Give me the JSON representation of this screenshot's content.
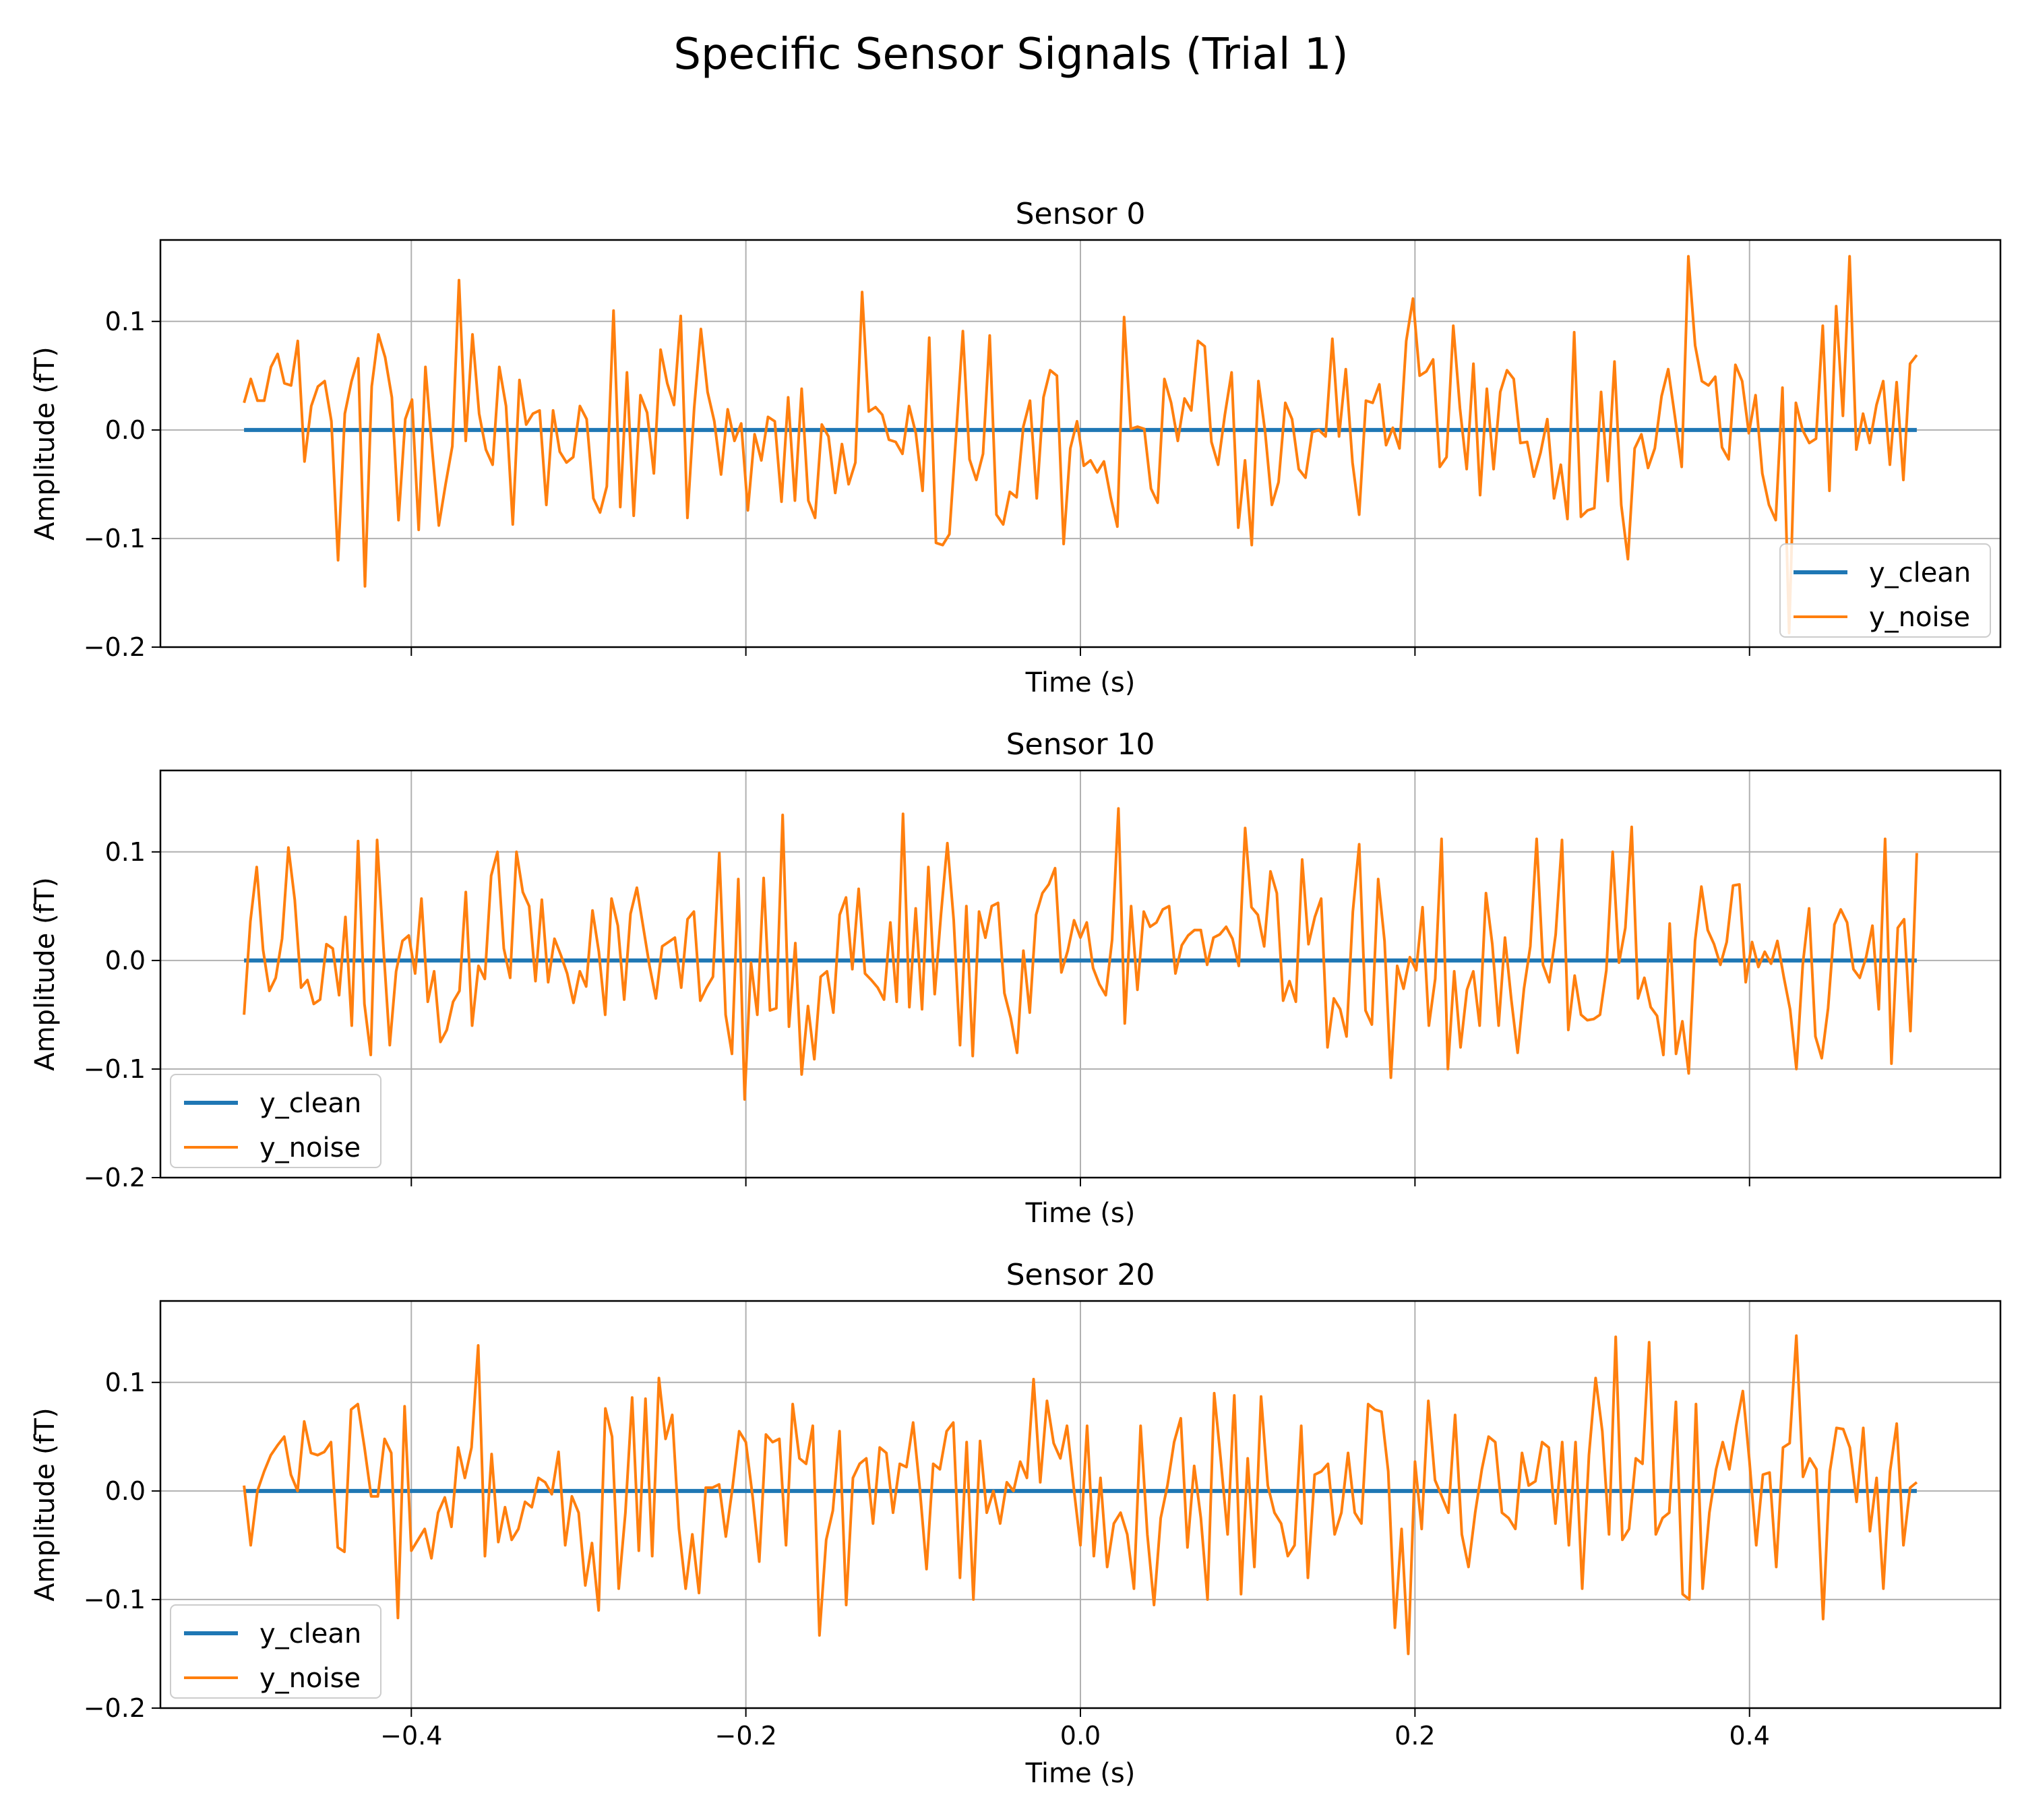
{
  "figure": {
    "suptitle": "Specific Sensor Signals (Trial 1)",
    "colors": {
      "y_clean": "#1f77b4",
      "y_noise": "#ff7f0e",
      "grid": "#b0b0b0"
    }
  },
  "chart_data": [
    {
      "type": "line",
      "title": "Sensor 0",
      "xlabel": "Time (s)",
      "ylabel": "Amplitude  (fT)",
      "xlim": [
        -0.55,
        0.55
      ],
      "ylim": [
        -0.2,
        0.175
      ],
      "xticks": [
        -0.4,
        -0.2,
        0.0,
        0.2,
        0.4
      ],
      "xtick_labels": [],
      "yticks": [
        -0.2,
        -0.1,
        0.0,
        0.1
      ],
      "ytick_labels": [
        "−0.2",
        "−0.1",
        "0.0",
        "0.1"
      ],
      "grid": true,
      "legend": "lower right",
      "x_start": -0.5,
      "x_end": 0.5,
      "series": [
        {
          "name": "y_clean",
          "values": [
            0.0,
            0.0
          ]
        },
        {
          "name": "y_noise",
          "values": [
            0.025,
            0.047,
            0.027,
            0.027,
            0.058,
            0.07,
            0.043,
            0.041,
            0.082,
            -0.029,
            0.022,
            0.04,
            0.045,
            0.008,
            -0.12,
            0.015,
            0.045,
            0.066,
            -0.144,
            0.04,
            0.088,
            0.067,
            0.03,
            -0.083,
            0.01,
            0.028,
            -0.092,
            0.058,
            -0.018,
            -0.088,
            -0.05,
            -0.015,
            0.138,
            -0.01,
            0.088,
            0.015,
            -0.018,
            -0.032,
            0.058,
            0.022,
            -0.087,
            0.046,
            0.005,
            0.015,
            0.018,
            -0.069,
            0.018,
            -0.02,
            -0.03,
            -0.025,
            0.022,
            0.01,
            -0.063,
            -0.076,
            -0.052,
            0.11,
            -0.071,
            0.053,
            -0.079,
            0.032,
            0.016,
            -0.04,
            0.074,
            0.043,
            0.023,
            0.105,
            -0.081,
            0.02,
            0.093,
            0.035,
            0.008,
            -0.041,
            0.019,
            -0.01,
            0.006,
            -0.074,
            -0.004,
            -0.028,
            0.012,
            0.008,
            -0.066,
            0.03,
            -0.065,
            0.038,
            -0.065,
            -0.081,
            0.005,
            -0.006,
            -0.058,
            -0.013,
            -0.05,
            -0.03,
            0.127,
            0.017,
            0.021,
            0.014,
            -0.009,
            -0.011,
            -0.022,
            0.022,
            -0.003,
            -0.056,
            0.085,
            -0.104,
            -0.106,
            -0.096,
            -0.004,
            0.091,
            -0.027,
            -0.046,
            -0.022,
            0.087,
            -0.078,
            -0.087,
            -0.057,
            -0.062,
            0.003,
            0.027,
            -0.063,
            0.03,
            0.055,
            0.05,
            -0.105,
            -0.017,
            0.008,
            -0.033,
            -0.028,
            -0.039,
            -0.029,
            -0.062,
            -0.089,
            0.104,
            0.001,
            0.003,
            0.001,
            -0.054,
            -0.067,
            0.047,
            0.025,
            -0.01,
            0.029,
            0.018,
            0.082,
            0.077,
            -0.011,
            -0.032,
            0.014,
            0.053,
            -0.09,
            -0.028,
            -0.106,
            0.045,
            -0.002,
            -0.069,
            -0.048,
            0.025,
            0.01,
            -0.036,
            -0.044,
            -0.002,
            0.0,
            -0.006,
            0.084,
            -0.006,
            0.056,
            -0.03,
            -0.078,
            0.027,
            0.025,
            0.042,
            -0.014,
            0.002,
            -0.017,
            0.082,
            0.121,
            0.05,
            0.054,
            0.065,
            -0.034,
            -0.025,
            0.096,
            0.02,
            -0.036,
            0.061,
            -0.06,
            0.038,
            -0.036,
            0.035,
            0.055,
            0.047,
            -0.012,
            -0.011,
            -0.043,
            -0.021,
            0.01,
            -0.063,
            -0.032,
            -0.082,
            0.09,
            -0.08,
            -0.074,
            -0.072,
            0.035,
            -0.047,
            0.063,
            -0.069,
            -0.119,
            -0.017,
            -0.004,
            -0.035,
            -0.017,
            0.031,
            0.056,
            0.012,
            -0.034,
            0.16,
            0.078,
            0.045,
            0.041,
            0.049,
            -0.016,
            -0.027,
            0.06,
            0.045,
            -0.003,
            0.032,
            -0.04,
            -0.069,
            -0.083,
            0.039,
            -0.187,
            0.025,
            0.0,
            -0.012,
            -0.008,
            0.096,
            -0.056,
            0.114,
            0.013,
            0.16,
            -0.018,
            0.015,
            -0.012,
            0.023,
            0.045,
            -0.032,
            0.044,
            -0.046,
            0.061,
            0.069
          ]
        }
      ]
    },
    {
      "type": "line",
      "title": "Sensor 10",
      "xlabel": "Time (s)",
      "ylabel": "Amplitude  (fT)",
      "xlim": [
        -0.55,
        0.55
      ],
      "ylim": [
        -0.2,
        0.175
      ],
      "xticks": [
        -0.4,
        -0.2,
        0.0,
        0.2,
        0.4
      ],
      "xtick_labels": [],
      "yticks": [
        -0.2,
        -0.1,
        0.0,
        0.1
      ],
      "ytick_labels": [
        "−0.2",
        "−0.1",
        "0.0",
        "0.1"
      ],
      "grid": true,
      "legend": "lower left",
      "x_start": -0.5,
      "x_end": 0.5,
      "series": [
        {
          "name": "y_clean",
          "values": [
            0.0,
            0.0
          ]
        },
        {
          "name": "y_noise",
          "values": [
            -0.05,
            0.036,
            0.086,
            0.01,
            -0.028,
            -0.016,
            0.02,
            0.104,
            0.056,
            -0.025,
            -0.018,
            -0.04,
            -0.036,
            0.015,
            0.011,
            -0.032,
            0.04,
            -0.06,
            0.11,
            -0.04,
            -0.087,
            0.111,
            0.012,
            -0.078,
            -0.01,
            0.018,
            0.023,
            -0.012,
            0.057,
            -0.038,
            -0.01,
            -0.075,
            -0.064,
            -0.038,
            -0.028,
            0.063,
            -0.06,
            -0.005,
            -0.017,
            0.078,
            0.1,
            0.011,
            -0.016,
            0.1,
            0.063,
            0.05,
            -0.019,
            0.056,
            -0.02,
            0.02,
            0.005,
            -0.012,
            -0.039,
            -0.01,
            -0.024,
            0.046,
            0.008,
            -0.05,
            0.057,
            0.032,
            -0.036,
            0.043,
            0.067,
            0.031,
            -0.005,
            -0.035,
            0.013,
            0.017,
            0.021,
            -0.025,
            0.038,
            0.045,
            -0.037,
            -0.025,
            -0.015,
            0.099,
            -0.05,
            -0.086,
            0.075,
            -0.128,
            -0.002,
            -0.05,
            0.076,
            -0.046,
            -0.044,
            0.134,
            -0.061,
            0.016,
            -0.105,
            -0.042,
            -0.091,
            -0.015,
            -0.01,
            -0.048,
            0.042,
            0.058,
            -0.008,
            0.066,
            -0.012,
            -0.018,
            -0.025,
            -0.036,
            0.035,
            -0.038,
            0.135,
            -0.043,
            0.048,
            -0.045,
            0.086,
            -0.031,
            0.043,
            0.108,
            0.037,
            -0.078,
            0.05,
            -0.088,
            0.045,
            0.021,
            0.05,
            0.053,
            -0.03,
            -0.053,
            -0.085,
            0.009,
            -0.048,
            0.042,
            0.062,
            0.07,
            0.085,
            -0.011,
            0.009,
            0.037,
            0.021,
            0.035,
            -0.007,
            -0.022,
            -0.032,
            0.019,
            0.14,
            -0.058,
            0.05,
            -0.027,
            0.045,
            0.031,
            0.035,
            0.047,
            0.05,
            -0.012,
            0.014,
            0.023,
            0.028,
            0.028,
            -0.004,
            0.021,
            0.024,
            0.031,
            0.02,
            -0.005,
            0.122,
            0.049,
            0.042,
            0.013,
            0.082,
            0.062,
            -0.037,
            -0.019,
            -0.038,
            0.093,
            0.015,
            0.04,
            0.057,
            -0.08,
            -0.035,
            -0.045,
            -0.07,
            0.045,
            0.107,
            -0.046,
            -0.059,
            0.075,
            0.018,
            -0.108,
            -0.005,
            -0.026,
            0.003,
            -0.009,
            0.049,
            -0.06,
            -0.017,
            0.112,
            -0.1,
            -0.01,
            -0.08,
            -0.027,
            -0.01,
            -0.06,
            0.062,
            0.015,
            -0.06,
            0.021,
            -0.036,
            -0.085,
            -0.026,
            0.013,
            0.112,
            -0.004,
            -0.02,
            0.024,
            0.111,
            -0.064,
            -0.014,
            -0.05,
            -0.055,
            -0.054,
            -0.05,
            -0.009,
            0.1,
            -0.002,
            0.03,
            0.123,
            -0.035,
            -0.016,
            -0.043,
            -0.051,
            -0.087,
            0.034,
            -0.086,
            -0.056,
            -0.104,
            0.018,
            0.068,
            0.028,
            0.015,
            -0.004,
            0.017,
            0.069,
            0.07,
            -0.02,
            0.017,
            -0.006,
            0.008,
            -0.003,
            0.018,
            -0.015,
            -0.045,
            -0.1,
            -0.004,
            0.048,
            -0.07,
            -0.09,
            -0.044,
            0.033,
            0.047,
            0.035,
            -0.008,
            -0.016,
            0.003,
            0.032,
            -0.045,
            0.112,
            -0.095,
            0.03,
            0.038,
            -0.065,
            0.099
          ]
        }
      ]
    },
    {
      "type": "line",
      "title": "Sensor 20",
      "xlabel": "Time (s)",
      "ylabel": "Amplitude  (fT)",
      "xlim": [
        -0.55,
        0.55
      ],
      "ylim": [
        -0.2,
        0.175
      ],
      "xticks": [
        -0.4,
        -0.2,
        0.0,
        0.2,
        0.4
      ],
      "xtick_labels": [
        "−0.4",
        "−0.2",
        "0.0",
        "0.2",
        "0.4"
      ],
      "yticks": [
        -0.2,
        -0.1,
        0.0,
        0.1
      ],
      "ytick_labels": [
        "−0.2",
        "−0.1",
        "0.0",
        "0.1"
      ],
      "grid": true,
      "legend": "lower left",
      "x_start": -0.5,
      "x_end": 0.5,
      "series": [
        {
          "name": "y_clean",
          "values": [
            0.0,
            0.0
          ]
        },
        {
          "name": "y_noise",
          "values": [
            0.005,
            -0.05,
            0.0,
            0.018,
            0.033,
            0.042,
            0.05,
            0.015,
            0.0,
            0.064,
            0.035,
            0.033,
            0.036,
            0.045,
            -0.052,
            -0.056,
            0.075,
            0.08,
            0.04,
            -0.005,
            -0.005,
            0.048,
            0.035,
            -0.117,
            0.078,
            -0.055,
            -0.045,
            -0.035,
            -0.062,
            -0.02,
            -0.006,
            -0.033,
            0.04,
            0.012,
            0.04,
            0.134,
            -0.06,
            0.034,
            -0.047,
            -0.015,
            -0.045,
            -0.035,
            -0.01,
            -0.015,
            0.012,
            0.008,
            -0.003,
            0.036,
            -0.05,
            -0.005,
            -0.02,
            -0.087,
            -0.048,
            -0.11,
            0.076,
            0.05,
            -0.09,
            -0.02,
            0.086,
            -0.055,
            0.085,
            -0.06,
            0.104,
            0.048,
            0.07,
            -0.035,
            -0.09,
            -0.04,
            -0.094,
            0.003,
            0.003,
            0.006,
            -0.042,
            0.003,
            0.055,
            0.045,
            -0.005,
            -0.065,
            0.052,
            0.045,
            0.048,
            -0.05,
            0.08,
            0.03,
            0.025,
            0.06,
            -0.133,
            -0.045,
            -0.018,
            0.055,
            -0.105,
            0.012,
            0.025,
            0.03,
            -0.03,
            0.04,
            0.035,
            -0.02,
            0.025,
            0.022,
            0.063,
            0.002,
            -0.072,
            0.025,
            0.02,
            0.055,
            0.063,
            -0.08,
            0.045,
            -0.1,
            0.046,
            -0.02,
            0.0,
            -0.03,
            0.008,
            0.0,
            0.027,
            0.012,
            0.103,
            0.008,
            0.083,
            0.044,
            0.03,
            0.06,
            0.003,
            -0.05,
            0.06,
            -0.06,
            0.012,
            -0.07,
            -0.03,
            -0.02,
            -0.04,
            -0.09,
            0.06,
            -0.04,
            -0.105,
            -0.025,
            0.005,
            0.045,
            0.067,
            -0.052,
            0.023,
            -0.025,
            -0.1,
            0.09,
            0.027,
            -0.04,
            0.088,
            -0.095,
            0.03,
            -0.07,
            0.087,
            0.005,
            -0.02,
            -0.03,
            -0.06,
            -0.05,
            0.06,
            -0.08,
            0.015,
            0.018,
            0.025,
            -0.04,
            -0.02,
            0.035,
            -0.02,
            -0.03,
            0.08,
            0.075,
            0.073,
            0.018,
            -0.126,
            -0.035,
            -0.15,
            0.027,
            -0.035,
            0.083,
            0.01,
            -0.005,
            -0.02,
            0.07,
            -0.04,
            -0.07,
            -0.02,
            0.02,
            0.05,
            0.045,
            -0.02,
            -0.025,
            -0.035,
            0.035,
            0.005,
            0.009,
            0.045,
            0.04,
            -0.03,
            0.045,
            -0.05,
            0.045,
            -0.09,
            0.033,
            0.104,
            0.055,
            -0.04,
            0.142,
            -0.045,
            -0.035,
            0.03,
            0.025,
            0.137,
            -0.04,
            -0.025,
            -0.02,
            0.082,
            -0.095,
            -0.1,
            0.08,
            -0.09,
            -0.02,
            0.02,
            0.045,
            0.02,
            0.06,
            0.092,
            0.027,
            -0.05,
            0.015,
            0.017,
            -0.07,
            0.04,
            0.044,
            0.143,
            0.013,
            0.03,
            0.02,
            -0.118,
            0.018,
            0.058,
            0.057,
            0.04,
            -0.01,
            0.058,
            -0.037,
            0.012,
            -0.09,
            0.018,
            0.062,
            -0.05,
            0.003,
            0.008
          ]
        }
      ]
    }
  ]
}
